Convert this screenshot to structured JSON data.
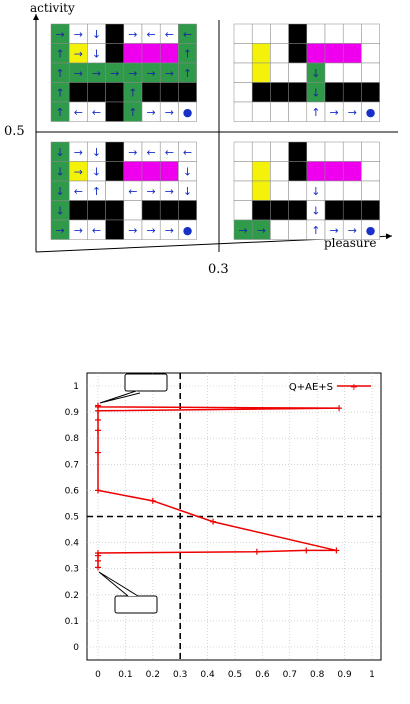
{
  "diagram": {
    "y_axis_label": "activity",
    "x_axis_label": "pleasure",
    "y_threshold_label": "0.5",
    "x_threshold_label": "0.3",
    "colors": {
      "green": "#2f9a4a",
      "yellow": "#f5f20a",
      "magenta": "#ee00ee",
      "black": "#000000",
      "arrow": "#1730c8",
      "grid": "#888888"
    },
    "quadrants": [
      {
        "name": "top-left",
        "cells": [
          [
            "S→",
            "→",
            "↓",
            "B",
            "G→",
            "←",
            "←",
            "←"
          ],
          [
            "↑",
            "Y→",
            "↓",
            "B",
            "M",
            "M",
            "M",
            "↑"
          ],
          [
            "↑",
            "→",
            "→",
            "→",
            "→",
            "→",
            "→",
            "↑"
          ],
          [
            "↑",
            "B",
            "B",
            "B",
            "↑",
            "B",
            "B",
            "B"
          ],
          [
            "↑",
            "←",
            "←",
            "B",
            "↑",
            "→",
            "→",
            "●"
          ]
        ]
      },
      {
        "name": "top-right",
        "cells": [
          [
            "",
            "",
            "",
            "B",
            "",
            "",
            "",
            ""
          ],
          [
            "",
            "Y",
            "",
            "B",
            "M",
            "M",
            "M",
            ""
          ],
          [
            "",
            "Y",
            "",
            "",
            "↓",
            "",
            "",
            ""
          ],
          [
            "",
            "B",
            "B",
            "B",
            "↓",
            "B",
            "B",
            "B"
          ],
          [
            "",
            "",
            "",
            "",
            "↑",
            "→",
            "→",
            "●"
          ]
        ]
      },
      {
        "name": "bottom-left",
        "cells": [
          [
            "↓",
            "→",
            "↓",
            "B",
            "→",
            "←",
            "←",
            "←"
          ],
          [
            "↓",
            "Y→",
            "↓",
            "B",
            "M",
            "M",
            "M",
            "↓"
          ],
          [
            "↓",
            "←",
            "↑",
            "",
            "←",
            "→",
            "→",
            "↓"
          ],
          [
            "↓",
            "B",
            "B",
            "B",
            "",
            "B",
            "B",
            "B"
          ],
          [
            "→",
            "→",
            "←",
            "B",
            "→",
            "→",
            "→",
            "●"
          ]
        ]
      },
      {
        "name": "bottom-right",
        "cells": [
          [
            "",
            "",
            "",
            "B",
            "",
            "",
            "",
            ""
          ],
          [
            "",
            "Y",
            "",
            "B",
            "M",
            "M",
            "M",
            ""
          ],
          [
            "",
            "Y",
            "",
            "",
            "↓",
            "",
            "",
            ""
          ],
          [
            "",
            "B",
            "B",
            "B",
            "↓",
            "B",
            "B",
            "B"
          ],
          [
            "→",
            "→",
            "",
            "",
            "↑",
            "→",
            "→",
            "●"
          ]
        ]
      }
    ]
  },
  "chart_data": {
    "type": "line",
    "title": "",
    "xlabel": "",
    "ylabel": "",
    "xlim": [
      0,
      1
    ],
    "ylim": [
      0,
      1
    ],
    "grid": true,
    "legend": "top-right",
    "x_ticks": [
      "0",
      "0.1",
      "0.2",
      "0.3",
      "0.4",
      "0.5",
      "0.6",
      "0.7",
      "0.8",
      "0.9",
      "1"
    ],
    "y_ticks": [
      "0",
      "0.1",
      "0.2",
      "0.3",
      "0.4",
      "0.5",
      "0.6",
      "0.7",
      "0.8",
      "0.9",
      "1"
    ],
    "threshold_lines": {
      "x": 0.3,
      "y": 0.5
    },
    "series": [
      {
        "name": "Q+AE+S",
        "color": "#ee0000",
        "x": [
          0,
          0,
          0,
          0,
          0.58,
          0.76,
          0.87,
          0.42,
          0.2,
          0,
          0,
          0,
          0,
          0,
          0.88,
          0,
          0
        ],
        "y": [
          0.305,
          0.33,
          0.35,
          0.36,
          0.365,
          0.37,
          0.37,
          0.48,
          0.56,
          0.6,
          0.745,
          0.83,
          0.87,
          0.905,
          0.915,
          0.92,
          0.925
        ]
      }
    ],
    "callouts": [
      {
        "text": ""
      },
      {
        "text": ""
      }
    ]
  }
}
